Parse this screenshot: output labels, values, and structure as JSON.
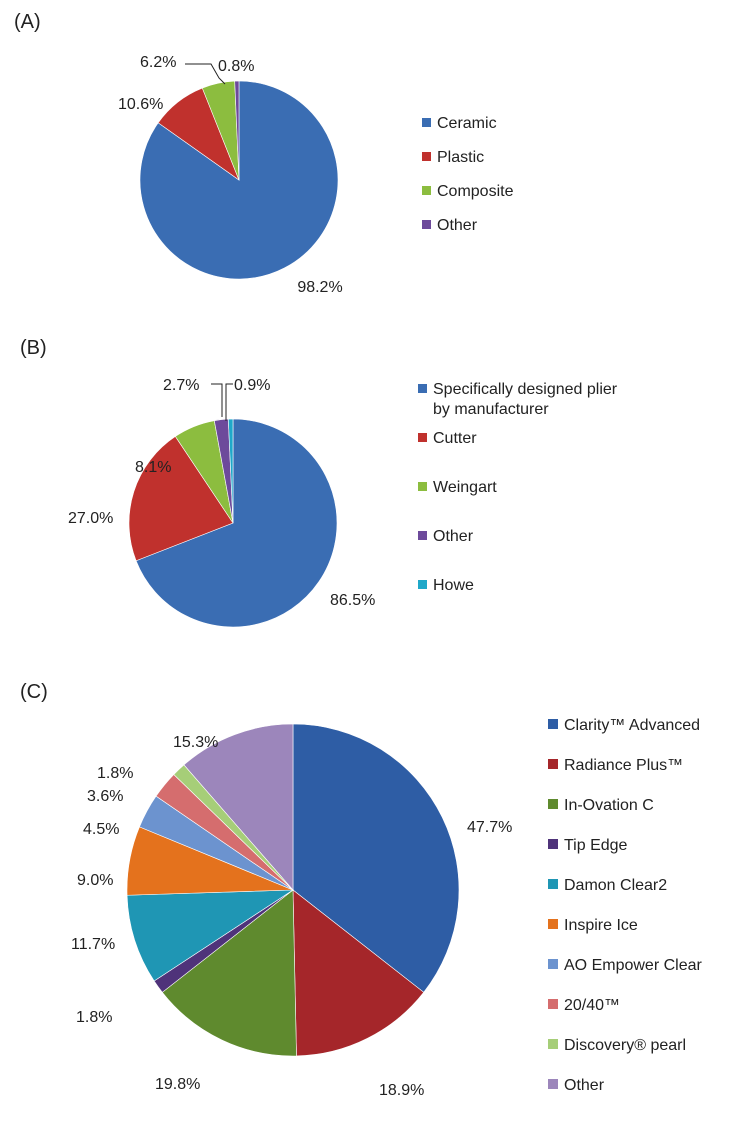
{
  "chart_data": [
    {
      "type": "pie",
      "panel_label": "(A)",
      "legend_position": "right",
      "categories": [
        "Ceramic",
        "Plastic",
        "Composite",
        "Other"
      ],
      "values": [
        98.2,
        10.6,
        6.2,
        0.8
      ],
      "labels": [
        "98.2%",
        "10.6%",
        "6.2%",
        "0.8%"
      ],
      "colors": [
        "#3a6db3",
        "#c0312d",
        "#8cbd3f",
        "#6d4a9b"
      ]
    },
    {
      "type": "pie",
      "panel_label": "(B)",
      "legend_position": "right",
      "categories": [
        "Specifically designed plier by manufacturer",
        "Cutter",
        "Weingart",
        "Other",
        "Howe"
      ],
      "legend_lines": [
        [
          "Specifically designed plier",
          "by manufacturer"
        ],
        [
          "Cutter"
        ],
        [
          "Weingart"
        ],
        [
          "Other"
        ],
        [
          "Howe"
        ]
      ],
      "values": [
        86.5,
        27.0,
        8.1,
        2.7,
        0.9
      ],
      "labels": [
        "86.5%",
        "27.0%",
        "8.1%",
        "2.7%",
        "0.9%"
      ],
      "colors": [
        "#3a6db3",
        "#c0312d",
        "#8cbd3f",
        "#6d4a9b",
        "#1fa8c9"
      ]
    },
    {
      "type": "pie",
      "panel_label": "(C)",
      "legend_position": "right",
      "categories": [
        "Clarity™ Advanced",
        "Radiance Plus™",
        "In-Ovation C",
        "Tip Edge",
        "Damon Clear2",
        "Inspire Ice",
        "AO Empower Clear",
        "20/40™",
        "Discovery® pearl",
        "Other"
      ],
      "values": [
        47.7,
        18.9,
        19.8,
        1.8,
        11.7,
        9.0,
        4.5,
        3.6,
        1.8,
        15.3
      ],
      "labels": [
        "47.7%",
        "18.9%",
        "19.8%",
        "1.8%",
        "11.7%",
        "9.0%",
        "4.5%",
        "3.6%",
        "1.8%",
        "15.3%"
      ],
      "colors": [
        "#2e5da5",
        "#a5262a",
        "#5f8a2e",
        "#4f337a",
        "#1f96b4",
        "#e4721d",
        "#6c93cf",
        "#d56d6e",
        "#a6ce78",
        "#9c86bb"
      ]
    }
  ]
}
